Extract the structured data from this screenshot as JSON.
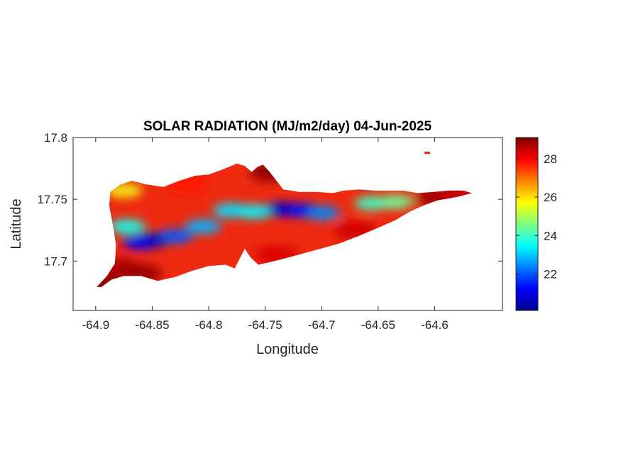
{
  "chart_data": {
    "type": "heatmap",
    "title": "SOLAR RADIATION (MJ/m2/day) 04-Jun-2025",
    "xlabel": "Longitude",
    "ylabel": "Latitude",
    "xlim": [
      -64.92,
      -64.54
    ],
    "ylim": [
      17.66,
      17.8
    ],
    "x_ticks": [
      -64.9,
      -64.85,
      -64.8,
      -64.75,
      -64.7,
      -64.65,
      -64.6
    ],
    "x_tick_labels": [
      "-64.9",
      "-64.85",
      "-64.8",
      "-64.75",
      "-64.7",
      "-64.65",
      "-64.6"
    ],
    "y_ticks": [
      17.7,
      17.75,
      17.8
    ],
    "y_tick_labels": [
      "17.7",
      "17.75",
      "17.8"
    ],
    "colorbar": {
      "colormap": "jet",
      "clim": [
        20.1,
        29.1
      ],
      "ticks": [
        22,
        24,
        26,
        28
      ],
      "tick_labels": [
        "22",
        "24",
        "26",
        "28"
      ]
    },
    "grid": false,
    "land_outline": [
      [
        -64.899,
        17.679
      ],
      [
        -64.89,
        17.688
      ],
      [
        -64.883,
        17.698
      ],
      [
        -64.882,
        17.713
      ],
      [
        -64.885,
        17.73
      ],
      [
        -64.888,
        17.745
      ],
      [
        -64.887,
        17.756
      ],
      [
        -64.878,
        17.762
      ],
      [
        -64.868,
        17.765
      ],
      [
        -64.855,
        17.762
      ],
      [
        -64.84,
        17.76
      ],
      [
        -64.826,
        17.765
      ],
      [
        -64.812,
        17.769
      ],
      [
        -64.8,
        17.77
      ],
      [
        -64.788,
        17.774
      ],
      [
        -64.775,
        17.779
      ],
      [
        -64.768,
        17.777
      ],
      [
        -64.762,
        17.772
      ],
      [
        -64.757,
        17.776
      ],
      [
        -64.752,
        17.778
      ],
      [
        -64.746,
        17.772
      ],
      [
        -64.74,
        17.765
      ],
      [
        -64.734,
        17.758
      ],
      [
        -64.72,
        17.756
      ],
      [
        -64.705,
        17.756
      ],
      [
        -64.69,
        17.755
      ],
      [
        -64.68,
        17.757
      ],
      [
        -64.667,
        17.758
      ],
      [
        -64.653,
        17.757
      ],
      [
        -64.64,
        17.757
      ],
      [
        -64.628,
        17.757
      ],
      [
        -64.615,
        17.755
      ],
      [
        -64.6,
        17.756
      ],
      [
        -64.588,
        17.757
      ],
      [
        -64.575,
        17.757
      ],
      [
        -64.567,
        17.755
      ],
      [
        -64.58,
        17.752
      ],
      [
        -64.598,
        17.749
      ],
      [
        -64.61,
        17.745
      ],
      [
        -64.622,
        17.74
      ],
      [
        -64.635,
        17.733
      ],
      [
        -64.65,
        17.727
      ],
      [
        -64.668,
        17.72
      ],
      [
        -64.685,
        17.714
      ],
      [
        -64.705,
        17.709
      ],
      [
        -64.725,
        17.704
      ],
      [
        -64.742,
        17.7
      ],
      [
        -64.756,
        17.697
      ],
      [
        -64.763,
        17.703
      ],
      [
        -64.768,
        17.71
      ],
      [
        -64.772,
        17.703
      ],
      [
        -64.777,
        17.694
      ],
      [
        -64.785,
        17.697
      ],
      [
        -64.8,
        17.696
      ],
      [
        -64.815,
        17.692
      ],
      [
        -64.83,
        17.687
      ],
      [
        -64.845,
        17.684
      ],
      [
        -64.86,
        17.688
      ],
      [
        -64.875,
        17.688
      ],
      [
        -64.886,
        17.685
      ],
      [
        -64.895,
        17.679
      ]
    ],
    "field_features": [
      {
        "lon": -64.85,
        "lat": 17.717,
        "value": 20.6
      },
      {
        "lon": -64.86,
        "lat": 17.715,
        "value": 21.2
      },
      {
        "lon": -64.83,
        "lat": 17.72,
        "value": 22.0
      },
      {
        "lon": -64.735,
        "lat": 17.742,
        "value": 20.8
      },
      {
        "lon": -64.718,
        "lat": 17.741,
        "value": 21.3
      },
      {
        "lon": -64.7,
        "lat": 17.739,
        "value": 22.4
      },
      {
        "lon": -64.805,
        "lat": 17.728,
        "value": 22.8
      },
      {
        "lon": -64.78,
        "lat": 17.741,
        "value": 23.2
      },
      {
        "lon": -64.76,
        "lat": 17.74,
        "value": 23.4
      },
      {
        "lon": -64.655,
        "lat": 17.747,
        "value": 24.0
      },
      {
        "lon": -64.635,
        "lat": 17.748,
        "value": 24.4
      },
      {
        "lon": -64.872,
        "lat": 17.728,
        "value": 23.6
      },
      {
        "lon": -64.875,
        "lat": 17.757,
        "value": 25.6
      },
      {
        "lon": -64.74,
        "lat": 17.705,
        "value": 28.3
      },
      {
        "lon": -64.67,
        "lat": 17.725,
        "value": 28.4
      },
      {
        "lon": -64.88,
        "lat": 17.695,
        "value": 28.7
      },
      {
        "lon": -64.86,
        "lat": 17.69,
        "value": 28.9
      },
      {
        "lon": -64.895,
        "lat": 17.682,
        "value": 29.0
      },
      {
        "lon": -64.745,
        "lat": 17.772,
        "value": 29.0
      },
      {
        "lon": -64.82,
        "lat": 17.764,
        "value": 27.8
      },
      {
        "lon": -64.6,
        "lat": 17.752,
        "value": 28.8
      },
      {
        "lon": -64.575,
        "lat": 17.755,
        "value": 28.5
      }
    ]
  }
}
